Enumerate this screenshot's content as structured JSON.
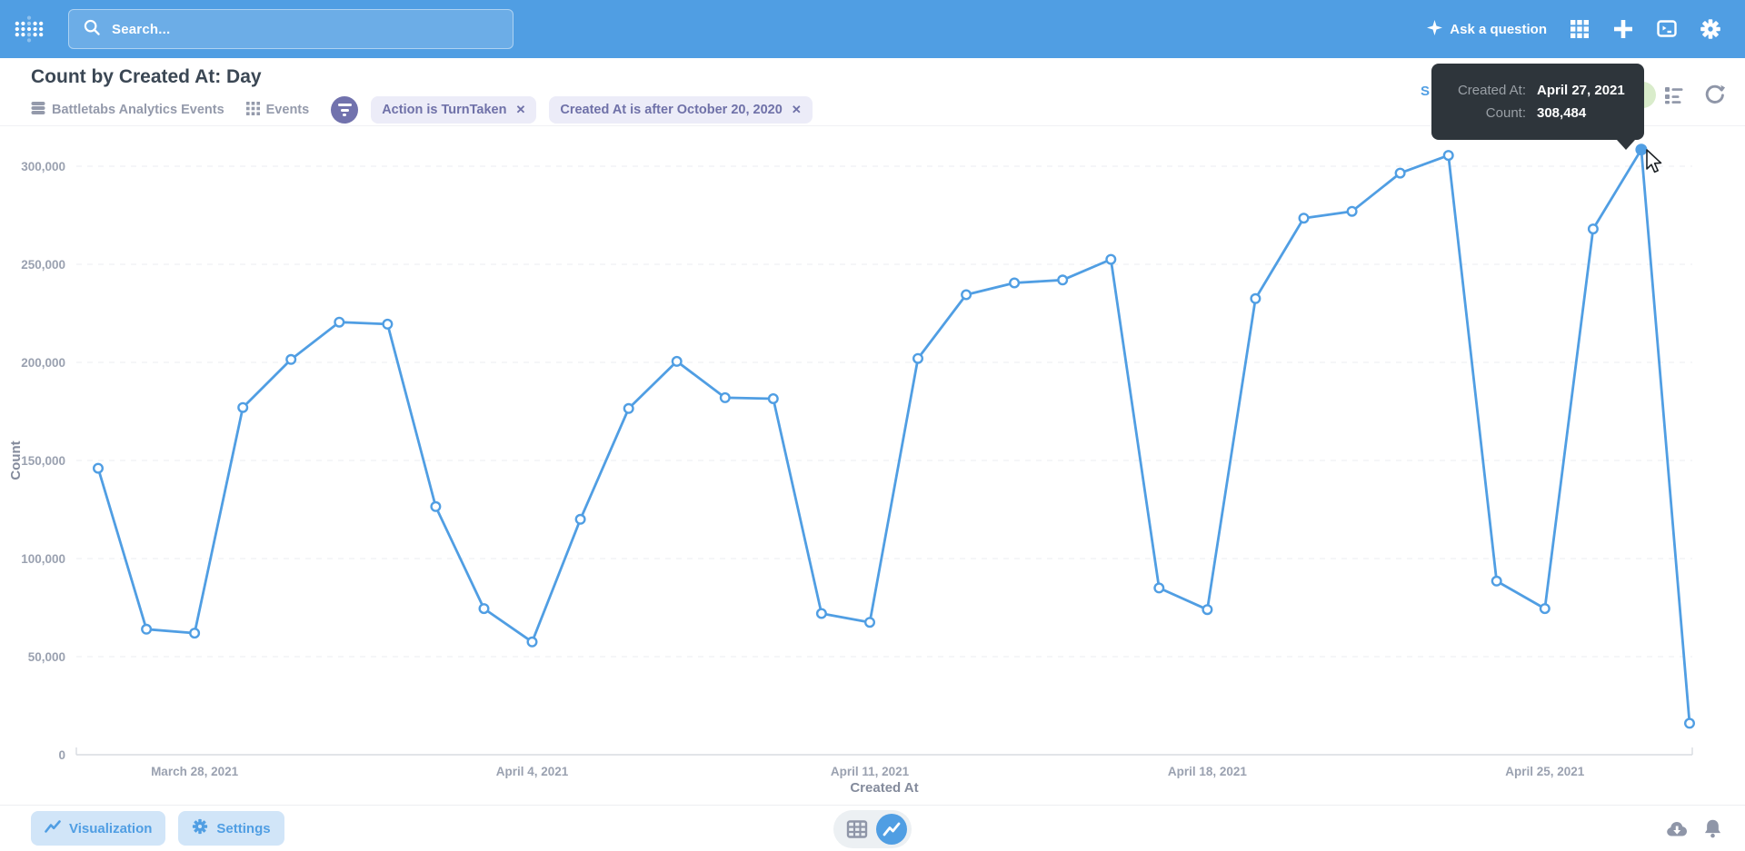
{
  "nav": {
    "search_placeholder": "Search...",
    "ask_question_label": "Ask a question"
  },
  "header": {
    "title": "Count by Created At: Day",
    "source_database": "Battletabs Analytics Events",
    "source_table": "Events",
    "filters": [
      {
        "label": "Action is TurnTaken",
        "close_glyph": "✕"
      },
      {
        "label": "Created At is after October 20, 2020",
        "close_glyph": "✕"
      }
    ],
    "clipped_action_fragment": "S"
  },
  "tooltip": {
    "rows": [
      {
        "label": "Created At:",
        "value": "April 27, 2021"
      },
      {
        "label": "Count:",
        "value": "308,484"
      }
    ]
  },
  "footer": {
    "visualization_label": "Visualization",
    "settings_label": "Settings"
  },
  "icons": {
    "nav": [
      "metabase-logo",
      "search",
      "sparkle",
      "apps-grid",
      "plus",
      "sql-console",
      "gear"
    ],
    "header": [
      "database",
      "table-grid",
      "funnel",
      "notebook-list",
      "refresh"
    ],
    "footer": [
      "line-chart",
      "gear",
      "table",
      "cloud-download",
      "bell"
    ]
  },
  "colors": {
    "brand_blue": "#509EE3",
    "filter_indigo": "#7172AD",
    "chip_bg": "#ECECF8",
    "tooltip_bg": "#2E353B",
    "hidden_green_button": "#D9ECCB",
    "muted_text": "#949AAB",
    "title_text": "#3b4754"
  },
  "chart_data": {
    "type": "line",
    "title": "Count by Created At: Day",
    "xlabel": "Created At",
    "ylabel": "Count",
    "ylim": [
      0,
      300000
    ],
    "grid": "horizontal-dashed",
    "legend": "none",
    "line_color": "#509EE3",
    "x": [
      "March 26, 2021",
      "March 27, 2021",
      "March 28, 2021",
      "March 29, 2021",
      "March 30, 2021",
      "March 31, 2021",
      "April 1, 2021",
      "April 2, 2021",
      "April 3, 2021",
      "April 4, 2021",
      "April 5, 2021",
      "April 6, 2021",
      "April 7, 2021",
      "April 8, 2021",
      "April 9, 2021",
      "April 10, 2021",
      "April 11, 2021",
      "April 12, 2021",
      "April 13, 2021",
      "April 14, 2021",
      "April 15, 2021",
      "April 16, 2021",
      "April 17, 2021",
      "April 18, 2021",
      "April 19, 2021",
      "April 20, 2021",
      "April 21, 2021",
      "April 22, 2021",
      "April 23, 2021",
      "April 24, 2021",
      "April 25, 2021",
      "April 26, 2021",
      "April 27, 2021",
      "April 28, 2021"
    ],
    "values": [
      146000,
      64000,
      62000,
      177000,
      201500,
      220500,
      219500,
      126500,
      74500,
      57500,
      120000,
      176500,
      200500,
      182000,
      181500,
      72000,
      67500,
      202000,
      234500,
      240500,
      242000,
      252500,
      85000,
      74000,
      232500,
      273500,
      277000,
      296500,
      305500,
      88500,
      74500,
      268000,
      308484,
      16000
    ],
    "hovered_index": 32,
    "hovered_value_exact": 308484,
    "y_ticks": [
      0,
      50000,
      100000,
      150000,
      200000,
      250000,
      300000
    ],
    "y_tick_labels": [
      "0",
      "50,000",
      "100,000",
      "150,000",
      "200,000",
      "250,000",
      "300,000"
    ],
    "x_tick_indices": [
      2,
      9,
      16,
      23,
      30
    ],
    "x_tick_labels": [
      "March 28, 2021",
      "April 4, 2021",
      "April 11, 2021",
      "April 18, 2021",
      "April 25, 2021"
    ]
  }
}
